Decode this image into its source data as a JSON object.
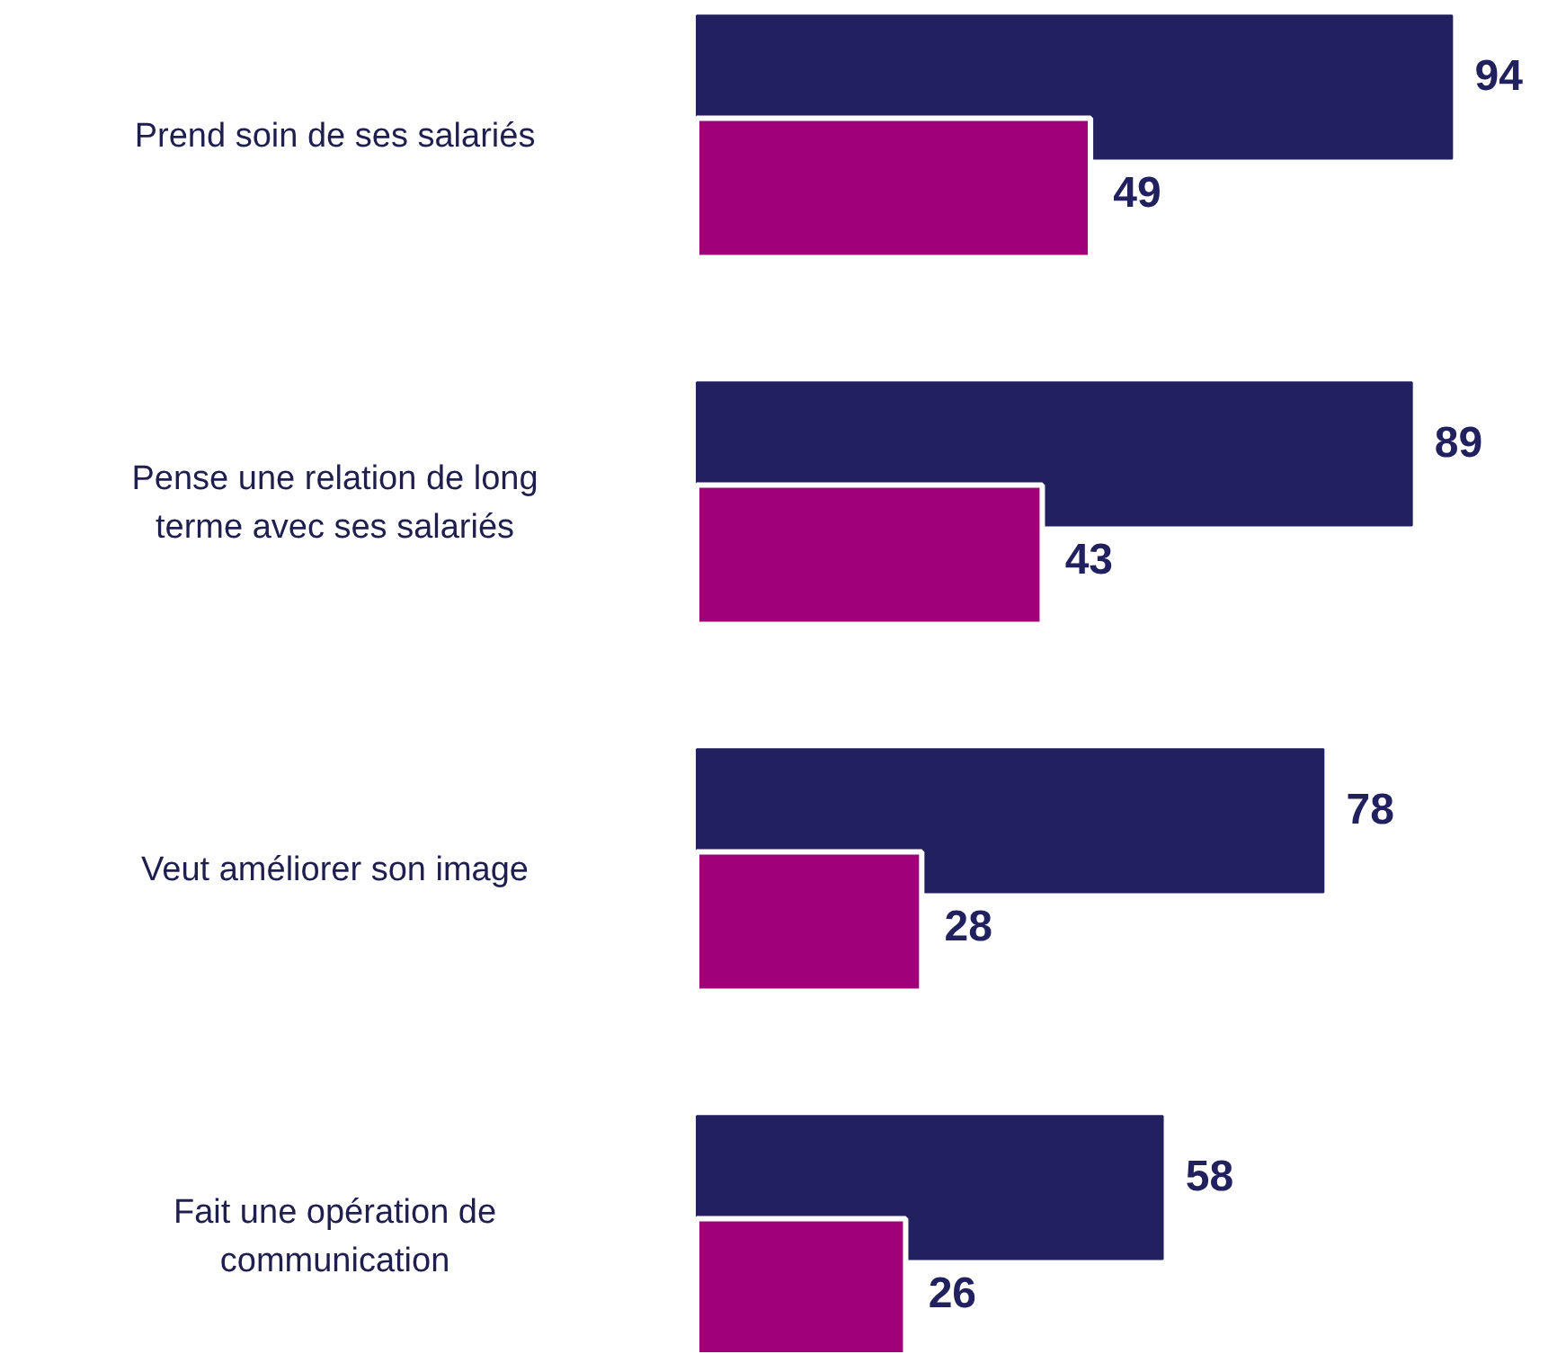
{
  "chart_data": {
    "type": "bar",
    "orientation": "horizontal",
    "categories": [
      "Prend soin de ses salariés",
      "Pense une relation de long terme avec ses salariés",
      "Veut améliorer son image",
      "Fait une opération de communication"
    ],
    "series": [
      {
        "color": "#22215f",
        "values": [
          94,
          89,
          78,
          58
        ]
      },
      {
        "color": "#a0007a",
        "values": [
          49,
          43,
          28,
          26
        ]
      }
    ],
    "data_labels": true,
    "grid": false
  }
}
